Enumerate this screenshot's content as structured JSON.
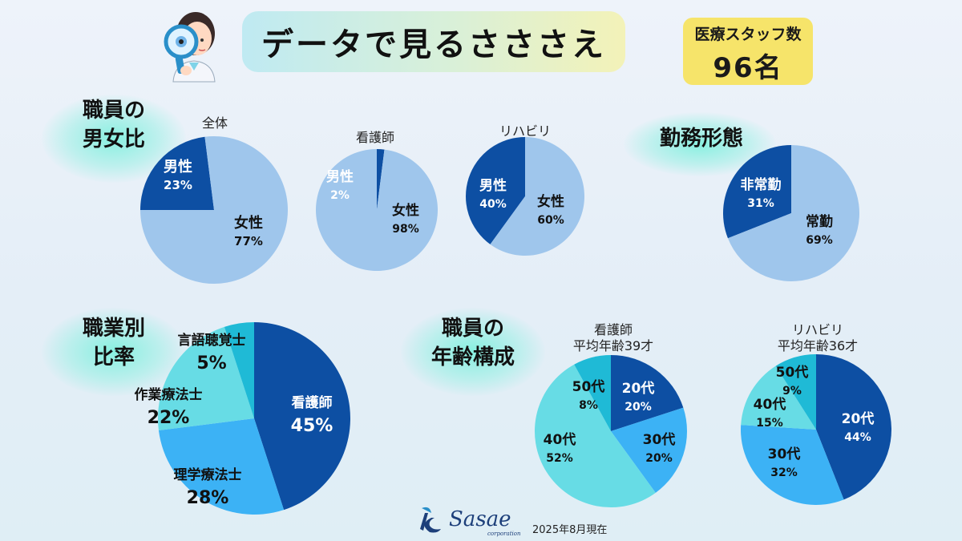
{
  "title": "データで見るさささえ",
  "staff": {
    "label": "医療スタッフ数",
    "count": "96名"
  },
  "sections": {
    "gender": "職員の\n男女比",
    "employment": "勤務形態",
    "occupation": "職業別\n比率",
    "age": "職員の\n年齢構成"
  },
  "footer": {
    "date": "2025年8月現在",
    "logo_name": "Sasae",
    "logo_sub": "corporation"
  },
  "colors": {
    "dark": "#0d4fa3",
    "light": "#9fc6ec",
    "mid": "#3cb2f5",
    "cyan": "#67dce5",
    "teal": "#1fbad6"
  },
  "chart_data": [
    {
      "id": "gender-all",
      "type": "pie",
      "title": "全体",
      "slices": [
        {
          "label": "男性",
          "pct_label": "23%",
          "value": 23,
          "color": "#0d4fa3"
        },
        {
          "label": "女性",
          "pct_label": "77%",
          "value": 77,
          "color": "#9fc6ec"
        }
      ]
    },
    {
      "id": "gender-nurse",
      "type": "pie",
      "title": "看護師",
      "slices": [
        {
          "label": "男性",
          "pct_label": "2%",
          "value": 2,
          "color": "#0d4fa3"
        },
        {
          "label": "女性",
          "pct_label": "98%",
          "value": 98,
          "color": "#9fc6ec"
        }
      ]
    },
    {
      "id": "gender-rehab",
      "type": "pie",
      "title": "リハビリ",
      "slices": [
        {
          "label": "男性",
          "pct_label": "40%",
          "value": 40,
          "color": "#0d4fa3"
        },
        {
          "label": "女性",
          "pct_label": "60%",
          "value": 60,
          "color": "#9fc6ec"
        }
      ]
    },
    {
      "id": "employment",
      "type": "pie",
      "title": "",
      "slices": [
        {
          "label": "非常勤",
          "pct_label": "31%",
          "value": 31,
          "color": "#0d4fa3"
        },
        {
          "label": "常勤",
          "pct_label": "69%",
          "value": 69,
          "color": "#9fc6ec"
        }
      ]
    },
    {
      "id": "occupation",
      "type": "pie",
      "title": "",
      "slices": [
        {
          "label": "看護師",
          "pct_label": "45%",
          "value": 45,
          "color": "#0d4fa3"
        },
        {
          "label": "理学療法士",
          "pct_label": "28%",
          "value": 28,
          "color": "#3cb2f5"
        },
        {
          "label": "作業療法士",
          "pct_label": "22%",
          "value": 22,
          "color": "#67dce5"
        },
        {
          "label": "言語聴覚士",
          "pct_label": "5%",
          "value": 5,
          "color": "#1fbad6"
        }
      ]
    },
    {
      "id": "age-nurse",
      "type": "pie",
      "title": "看護師",
      "subtitle": "平均年齢39才",
      "slices": [
        {
          "label": "20代",
          "pct_label": "20%",
          "value": 20,
          "color": "#0d4fa3"
        },
        {
          "label": "30代",
          "pct_label": "20%",
          "value": 20,
          "color": "#3cb2f5"
        },
        {
          "label": "40代",
          "pct_label": "52%",
          "value": 52,
          "color": "#67dce5"
        },
        {
          "label": "50代",
          "pct_label": "8%",
          "value": 8,
          "color": "#1fbad6"
        }
      ]
    },
    {
      "id": "age-rehab",
      "type": "pie",
      "title": "リハビリ",
      "subtitle": "平均年齢36才",
      "slices": [
        {
          "label": "20代",
          "pct_label": "44%",
          "value": 44,
          "color": "#0d4fa3"
        },
        {
          "label": "30代",
          "pct_label": "32%",
          "value": 32,
          "color": "#3cb2f5"
        },
        {
          "label": "40代",
          "pct_label": "15%",
          "value": 15,
          "color": "#67dce5"
        },
        {
          "label": "50代",
          "pct_label": "9%",
          "value": 9,
          "color": "#1fbad6"
        }
      ]
    }
  ]
}
